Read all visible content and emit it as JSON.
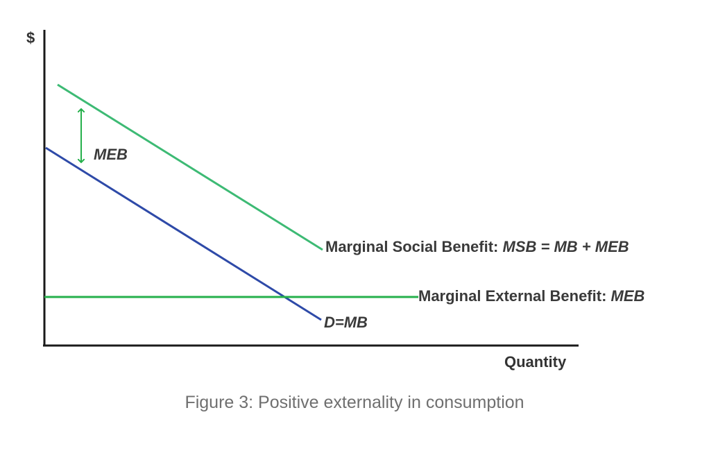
{
  "figure": {
    "y_axis_label": "$",
    "x_axis_label": "Quantity",
    "meb_arrow_label": "MEB",
    "msb_label_text": "Marginal Social Benefit: ",
    "msb_label_formula": "MSB = MB + MEB",
    "meb_line_label_text": "Marginal External Benefit: ",
    "meb_line_label_formula": "MEB",
    "demand_label": "D=MB",
    "caption": "Figure 3: Positive externality in consumption"
  },
  "colors": {
    "msb_curve": "#3dba74",
    "demand_curve": "#2e4aa8",
    "meb_line": "#25b04b",
    "meb_arrow": "#25b04b",
    "axes": "#1a1a1a",
    "caption_text": "#6f6f6f"
  }
}
